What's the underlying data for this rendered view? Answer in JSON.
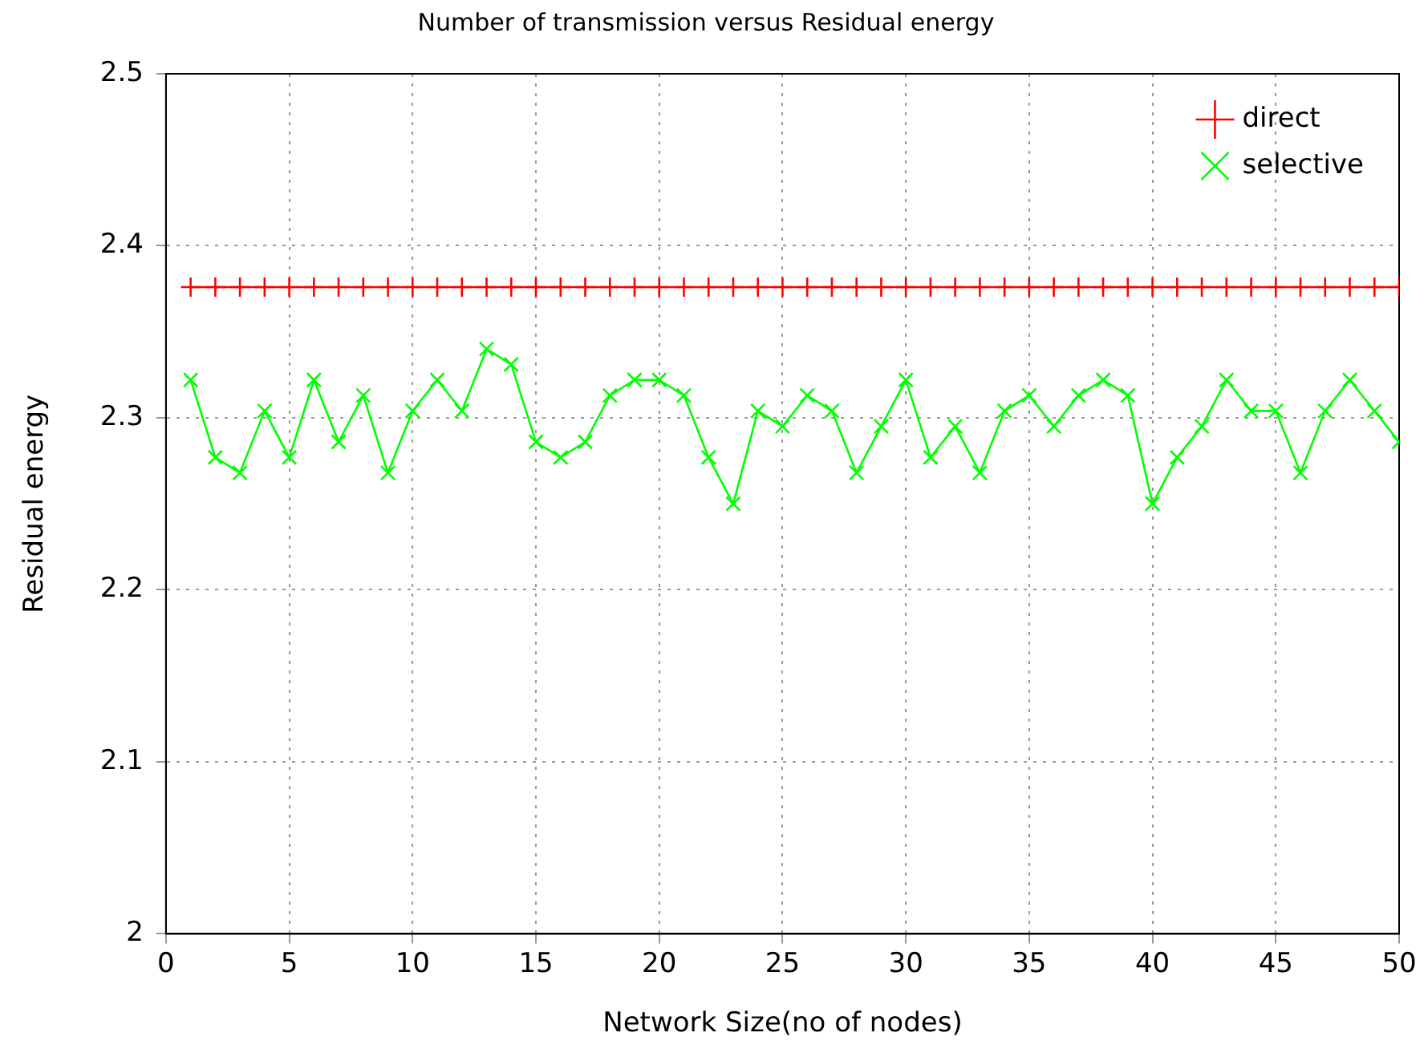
{
  "chart_data": {
    "type": "line",
    "title": "Number of transmission versus Residual energy",
    "xlabel": "Network Size(no of nodes)",
    "ylabel": "Residual energy",
    "x": [
      1,
      2,
      3,
      4,
      5,
      6,
      7,
      8,
      9,
      10,
      11,
      12,
      13,
      14,
      15,
      16,
      17,
      18,
      19,
      20,
      21,
      22,
      23,
      24,
      25,
      26,
      27,
      28,
      29,
      30,
      31,
      32,
      33,
      34,
      35,
      36,
      37,
      38,
      39,
      40,
      41,
      42,
      43,
      44,
      45,
      46,
      47,
      48,
      49,
      50
    ],
    "series": [
      {
        "name": "direct",
        "color": "#ff0000",
        "marker": "plus",
        "values": [
          2.376,
          2.376,
          2.376,
          2.376,
          2.376,
          2.376,
          2.376,
          2.376,
          2.376,
          2.376,
          2.376,
          2.376,
          2.376,
          2.376,
          2.376,
          2.376,
          2.376,
          2.376,
          2.376,
          2.376,
          2.376,
          2.376,
          2.376,
          2.376,
          2.376,
          2.376,
          2.376,
          2.376,
          2.376,
          2.376,
          2.376,
          2.376,
          2.376,
          2.376,
          2.376,
          2.376,
          2.376,
          2.376,
          2.376,
          2.376,
          2.376,
          2.376,
          2.376,
          2.376,
          2.376,
          2.376,
          2.376,
          2.376,
          2.376,
          2.376
        ]
      },
      {
        "name": "selective",
        "color": "#00ff00",
        "marker": "cross",
        "values": [
          2.322,
          2.277,
          2.268,
          2.304,
          2.277,
          2.322,
          2.286,
          2.313,
          2.268,
          2.304,
          2.322,
          2.304,
          2.34,
          2.331,
          2.286,
          2.277,
          2.286,
          2.313,
          2.322,
          2.322,
          2.313,
          2.277,
          2.25,
          2.304,
          2.295,
          2.313,
          2.304,
          2.268,
          2.295,
          2.322,
          2.277,
          2.295,
          2.268,
          2.304,
          2.313,
          2.295,
          2.313,
          2.322,
          2.313,
          2.25,
          2.277,
          2.295,
          2.322,
          2.304,
          2.304,
          2.268,
          2.304,
          2.322,
          2.304,
          2.286
        ]
      }
    ],
    "xlim": [
      0,
      50
    ],
    "xticks": [
      0,
      5,
      10,
      15,
      20,
      25,
      30,
      35,
      40,
      45,
      50
    ],
    "ylim": [
      2,
      2.5
    ],
    "yticks": [
      2,
      2.1,
      2.2,
      2.3,
      2.4,
      2.5
    ],
    "grid": true,
    "legend": "top right",
    "line_style": "solid"
  }
}
